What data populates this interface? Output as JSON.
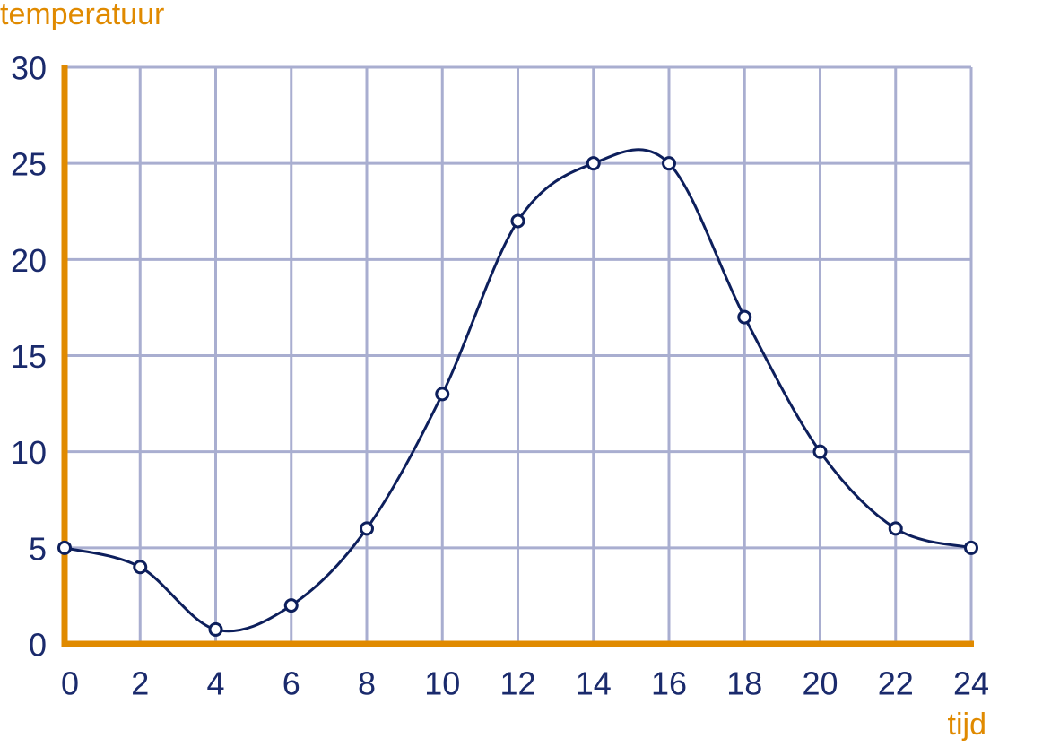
{
  "chart_data": {
    "type": "line",
    "y_label": "temperatuur",
    "x_label": "tijd",
    "x": [
      0,
      2,
      4,
      6,
      8,
      10,
      12,
      14,
      16,
      18,
      20,
      22,
      24
    ],
    "values": [
      5,
      4,
      0.75,
      2,
      6,
      13,
      22,
      25,
      25,
      17,
      10,
      6,
      5
    ],
    "color": "#0d1f5c",
    "xlim": [
      0,
      24
    ],
    "ylim": [
      0,
      30
    ],
    "xticks": [
      0,
      2,
      4,
      6,
      8,
      10,
      12,
      14,
      16,
      18,
      20,
      22,
      24
    ],
    "yticks": [
      0,
      5,
      10,
      15,
      20,
      25,
      30
    ],
    "grid": true,
    "axis_color": "#e08a00",
    "grid_color": "#a9aed0",
    "text_color": "#1a2a6c"
  }
}
